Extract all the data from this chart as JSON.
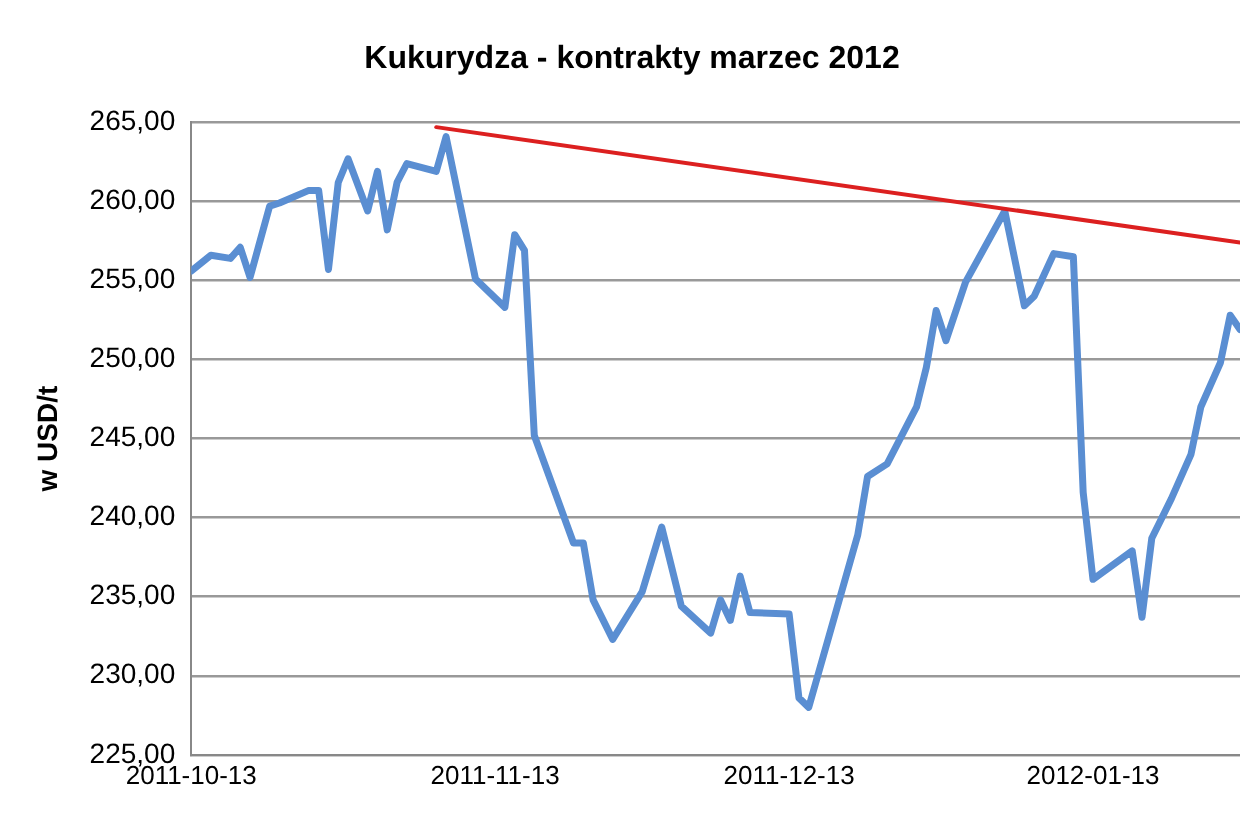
{
  "chart_data": {
    "type": "line",
    "title": "Kukurydza - kontrakty marzec 2012",
    "ylabel": "w USD/t",
    "x": [
      "2011-10-13",
      "2011-10-15",
      "2011-10-17",
      "2011-10-18",
      "2011-10-19",
      "2011-10-21",
      "2011-10-22",
      "2011-10-25",
      "2011-10-26",
      "2011-10-27",
      "2011-10-28",
      "2011-10-29",
      "2011-10-31",
      "2011-11-01",
      "2011-11-02",
      "2011-11-03",
      "2011-11-04",
      "2011-11-07",
      "2011-11-08",
      "2011-11-11",
      "2011-11-14",
      "2011-11-15",
      "2011-11-16",
      "2011-11-17",
      "2011-11-21",
      "2011-11-22",
      "2011-11-23",
      "2011-11-25",
      "2011-11-28",
      "2011-11-30",
      "2011-12-02",
      "2011-12-05",
      "2011-12-06",
      "2011-12-07",
      "2011-12-08",
      "2011-12-09",
      "2011-12-13",
      "2011-12-14",
      "2011-12-15",
      "2011-12-20",
      "2011-12-21",
      "2011-12-23",
      "2011-12-26",
      "2011-12-27",
      "2011-12-28",
      "2011-12-29",
      "2011-12-31",
      "2012-01-04",
      "2012-01-06",
      "2012-01-07",
      "2012-01-09",
      "2012-01-11",
      "2012-01-12",
      "2012-01-13",
      "2012-01-17",
      "2012-01-18",
      "2012-01-19",
      "2012-01-21",
      "2012-01-23",
      "2012-01-24",
      "2012-01-26",
      "2012-01-27",
      "2012-01-28"
    ],
    "series": [
      {
        "color": "#5a8ed2",
        "values": [
          255.6,
          256.6,
          256.4,
          257.1,
          255.2,
          259.7,
          259.9,
          260.7,
          260.7,
          255.7,
          261.2,
          262.7,
          259.4,
          261.9,
          258.2,
          261.2,
          262.4,
          261.9,
          264.1,
          255.1,
          253.3,
          257.9,
          256.9,
          245.2,
          238.4,
          238.4,
          234.8,
          232.3,
          235.3,
          239.4,
          234.4,
          232.7,
          234.8,
          233.5,
          236.3,
          234.0,
          233.9,
          228.6,
          228.0,
          238.9,
          242.6,
          243.4,
          247.0,
          249.5,
          253.1,
          251.2,
          254.9,
          259.4,
          253.4,
          254.0,
          256.7,
          256.5,
          241.6,
          236.1,
          237.9,
          233.7,
          238.7,
          241.2,
          244.0,
          247.0,
          249.8,
          252.8,
          251.9
        ]
      },
      {
        "type": "line",
        "color": "#dc2020",
        "x": [
          "2011-11-07",
          "2012-01-28"
        ],
        "values": [
          264.7,
          257.4
        ]
      }
    ],
    "xlim": [
      "2011-10-13",
      "2012-01-28"
    ],
    "xticks": [
      "2011-10-13",
      "2011-11-13",
      "2011-12-13",
      "2012-01-13"
    ],
    "ylim": [
      225,
      265
    ],
    "yticks": [
      {
        "value": 225,
        "label": "225,00"
      },
      {
        "value": 230,
        "label": "230,00"
      },
      {
        "value": 235,
        "label": "235,00"
      },
      {
        "value": 240,
        "label": "240,00"
      },
      {
        "value": 245,
        "label": "245,00"
      },
      {
        "value": 250,
        "label": "250,00"
      },
      {
        "value": 255,
        "label": "255,00"
      },
      {
        "value": 260,
        "label": "260,00"
      },
      {
        "value": 265,
        "label": "265,00"
      }
    ],
    "grid": "y",
    "legend": false,
    "marker": "none",
    "line_style": "solid"
  }
}
